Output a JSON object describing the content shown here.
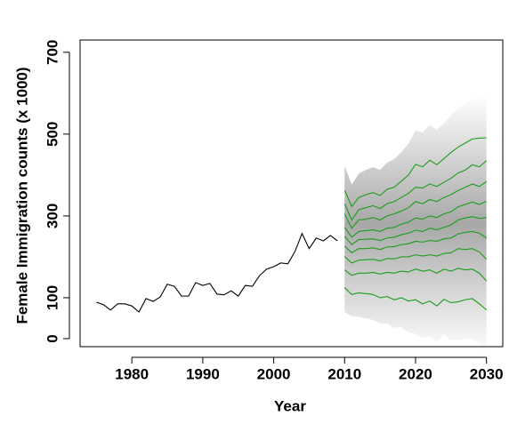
{
  "chart_data": {
    "type": "line",
    "xlabel": "Year",
    "ylabel": "Female Immigration counts (x 1000)",
    "xlim": [
      1972.7,
      2032.3
    ],
    "ylim": [
      -19.6,
      730
    ],
    "xticks": [
      1980,
      1990,
      2000,
      2010,
      2020,
      2030
    ],
    "yticks": [
      0,
      100,
      300,
      500,
      700
    ],
    "fan_color": "#606060",
    "series": [
      {
        "color": "#000000",
        "x": [
          1975,
          1976,
          1977,
          1978,
          1979,
          1980,
          1981,
          1982,
          1983,
          1984,
          1985,
          1986,
          1987,
          1988,
          1989,
          1990,
          1991,
          1992,
          1993,
          1994,
          1995,
          1996,
          1997,
          1998,
          1999,
          2000,
          2001,
          2002,
          2003,
          2004,
          2005,
          2006,
          2007,
          2008,
          2009
        ],
        "values": [
          89,
          83,
          70,
          85,
          85,
          80,
          65,
          98,
          91,
          102,
          133,
          128,
          104,
          104,
          137,
          130,
          135,
          109,
          107,
          117,
          104,
          130,
          128,
          154,
          170,
          176,
          185,
          183,
          213,
          257,
          220,
          246,
          239,
          252,
          239
        ]
      },
      {
        "color": "#1a9e1a",
        "x": [
          2010,
          2011,
          2012,
          2013,
          2014,
          2015,
          2016,
          2017,
          2018,
          2019,
          2020,
          2021,
          2022,
          2023,
          2024,
          2025,
          2026,
          2027,
          2028,
          2029,
          2030
        ],
        "values": [
          363,
          323,
          345,
          352,
          357,
          350,
          365,
          370,
          385,
          400,
          426,
          420,
          436,
          425,
          440,
          455,
          468,
          478,
          488,
          490,
          491
        ]
      },
      {
        "color": "#1a9e1a",
        "x": [
          2010,
          2011,
          2012,
          2013,
          2014,
          2015,
          2016,
          2017,
          2018,
          2019,
          2020,
          2021,
          2022,
          2023,
          2024,
          2025,
          2026,
          2027,
          2028,
          2029,
          2030
        ],
        "values": [
          330,
          290,
          315,
          320,
          325,
          318,
          330,
          335,
          345,
          355,
          370,
          368,
          378,
          372,
          382,
          392,
          405,
          412,
          425,
          420,
          435
        ]
      },
      {
        "color": "#1a9e1a",
        "x": [
          2010,
          2011,
          2012,
          2013,
          2014,
          2015,
          2016,
          2017,
          2018,
          2019,
          2020,
          2021,
          2022,
          2023,
          2024,
          2025,
          2026,
          2027,
          2028,
          2029,
          2030
        ],
        "values": [
          305,
          270,
          290,
          292,
          296,
          290,
          300,
          305,
          312,
          320,
          335,
          330,
          340,
          335,
          345,
          352,
          362,
          370,
          378,
          372,
          384
        ]
      },
      {
        "color": "#1a9e1a",
        "x": [
          2010,
          2011,
          2012,
          2013,
          2014,
          2015,
          2016,
          2017,
          2018,
          2019,
          2020,
          2021,
          2022,
          2023,
          2024,
          2025,
          2026,
          2027,
          2028,
          2029,
          2030
        ],
        "values": [
          272,
          248,
          262,
          264,
          266,
          262,
          270,
          272,
          280,
          285,
          295,
          292,
          300,
          296,
          305,
          310,
          322,
          328,
          334,
          328,
          336
        ]
      },
      {
        "color": "#1a9e1a",
        "x": [
          2010,
          2011,
          2012,
          2013,
          2014,
          2015,
          2016,
          2017,
          2018,
          2019,
          2020,
          2021,
          2022,
          2023,
          2024,
          2025,
          2026,
          2027,
          2028,
          2029,
          2030
        ],
        "values": [
          250,
          230,
          242,
          243,
          244,
          240,
          246,
          248,
          254,
          258,
          265,
          262,
          270,
          266,
          272,
          278,
          290,
          295,
          298,
          294,
          296
        ]
      },
      {
        "color": "#1a9e1a",
        "x": [
          2010,
          2011,
          2012,
          2013,
          2014,
          2015,
          2016,
          2017,
          2018,
          2019,
          2020,
          2021,
          2022,
          2023,
          2024,
          2025,
          2026,
          2027,
          2028,
          2029,
          2030
        ],
        "values": [
          226,
          210,
          220,
          220,
          222,
          218,
          224,
          225,
          230,
          232,
          238,
          236,
          240,
          238,
          244,
          246,
          256,
          260,
          262,
          258,
          246
        ]
      },
      {
        "color": "#1a9e1a",
        "x": [
          2010,
          2011,
          2012,
          2013,
          2014,
          2015,
          2016,
          2017,
          2018,
          2019,
          2020,
          2021,
          2022,
          2023,
          2024,
          2025,
          2026,
          2027,
          2028,
          2029,
          2030
        ],
        "values": [
          201,
          185,
          192,
          193,
          194,
          190,
          196,
          195,
          200,
          200,
          205,
          202,
          205,
          202,
          208,
          210,
          220,
          218,
          220,
          212,
          194
        ]
      },
      {
        "color": "#1a9e1a",
        "x": [
          2010,
          2011,
          2012,
          2013,
          2014,
          2015,
          2016,
          2017,
          2018,
          2019,
          2020,
          2021,
          2022,
          2023,
          2024,
          2025,
          2026,
          2027,
          2028,
          2029,
          2030
        ],
        "values": [
          168,
          155,
          160,
          160,
          162,
          158,
          162,
          160,
          165,
          163,
          170,
          165,
          168,
          160,
          170,
          165,
          172,
          168,
          170,
          160,
          141
        ]
      },
      {
        "color": "#1a9e1a",
        "x": [
          2010,
          2011,
          2012,
          2013,
          2014,
          2015,
          2016,
          2017,
          2018,
          2019,
          2020,
          2021,
          2022,
          2023,
          2024,
          2025,
          2026,
          2027,
          2028,
          2029,
          2030
        ],
        "values": [
          125,
          108,
          112,
          110,
          108,
          100,
          103,
          95,
          100,
          92,
          95,
          85,
          92,
          80,
          96,
          88,
          90,
          95,
          98,
          85,
          70
        ]
      }
    ]
  }
}
